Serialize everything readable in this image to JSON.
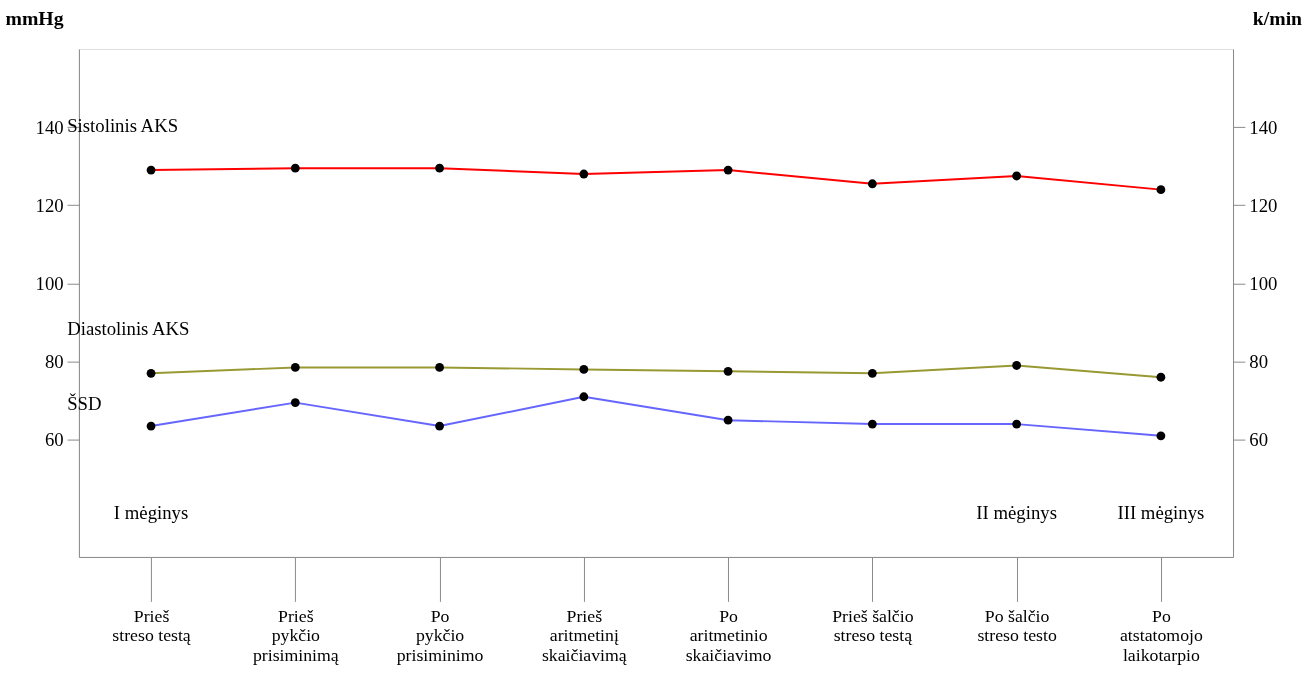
{
  "chart_data": {
    "type": "line",
    "categories": [
      "Prieš\nstreso testą",
      "Prieš\npykčio\nprisiminimą",
      "Po\npykčio\nprisiminimo",
      "Prieš\naritmetinį\nskaičiavimą",
      "Po\naritmetinio\nskaičiavimo",
      "Prieš šalčio\nstreso testą",
      "Po šalčio\nstreso testo",
      "Po\natstatomojo\nlaikotarpio"
    ],
    "series": [
      {
        "name": "Sistolinis AKS",
        "color": "#ff0000",
        "values": [
          129,
          129.5,
          129.5,
          128,
          129,
          125.5,
          127.5,
          124
        ]
      },
      {
        "name": "Diastolinis AKS",
        "color": "#999933",
        "values": [
          77,
          78.5,
          78.5,
          78,
          77.5,
          77,
          79,
          76
        ]
      },
      {
        "name": "ŠSD",
        "color": "#6666ff",
        "axis": "y2",
        "values": [
          63.5,
          69.5,
          63.5,
          71,
          65,
          64,
          64,
          61
        ]
      }
    ],
    "ylabel": "mmHg",
    "y2label": "k/min",
    "ylim": [
      30,
      160
    ],
    "yticks": [
      60,
      80,
      100,
      120,
      140
    ],
    "y2lim": [
      30,
      160
    ],
    "y2ticks": [
      60,
      80,
      100,
      120,
      140
    ],
    "marker": "circle",
    "grid": false,
    "legend": false,
    "annotations": [
      "I mėginys",
      "II mėginys",
      "III mėginys"
    ]
  }
}
